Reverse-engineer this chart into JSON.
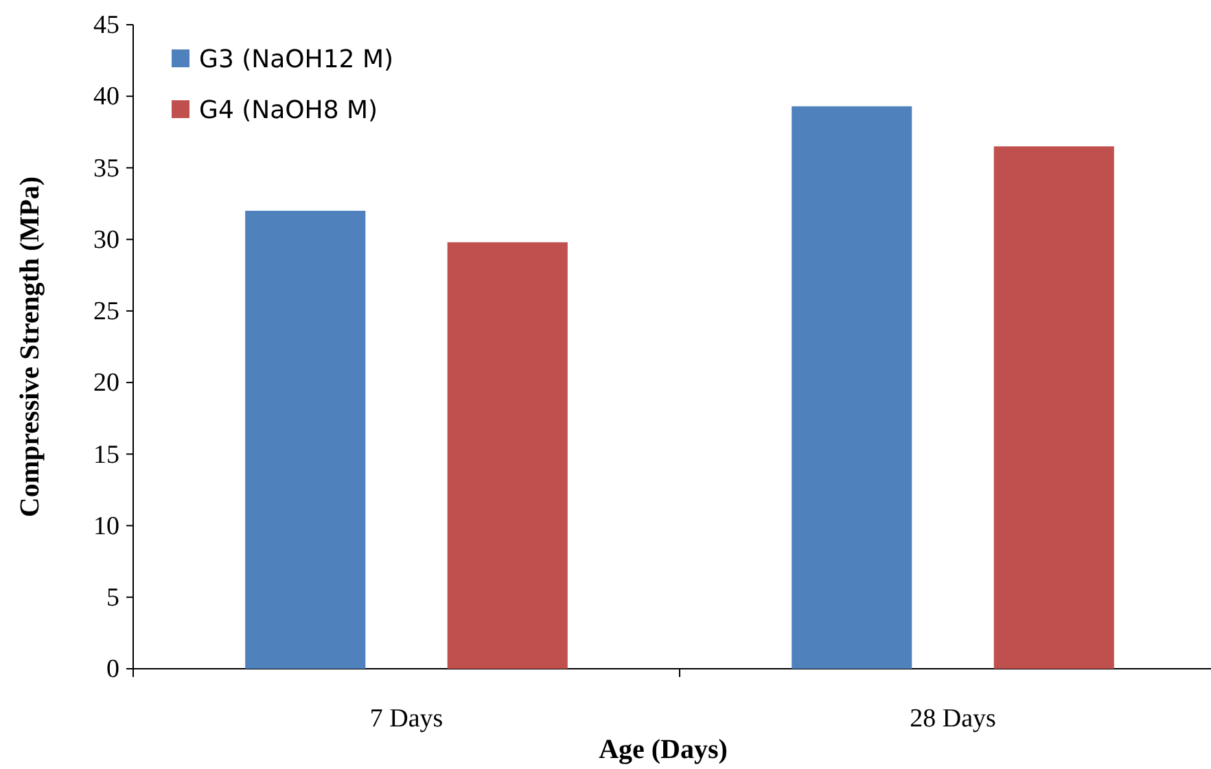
{
  "chart_data": {
    "type": "bar",
    "xlabel": "Age (Days)",
    "ylabel": "Compressive Strength (MPa)",
    "categories": [
      "7 Days",
      "28 Days"
    ],
    "series": [
      {
        "name": "G3 (NaOH12 M)",
        "color": "#4f81bd",
        "values": [
          32,
          39.3
        ]
      },
      {
        "name": "G4 (NaOH8 M)",
        "color": "#c0504d",
        "values": [
          29.8,
          36.5
        ]
      }
    ],
    "ylim": [
      0,
      45
    ],
    "yticks": [
      0,
      5,
      10,
      15,
      20,
      25,
      30,
      35,
      40,
      45
    ],
    "grid": false,
    "legend": "top left"
  }
}
